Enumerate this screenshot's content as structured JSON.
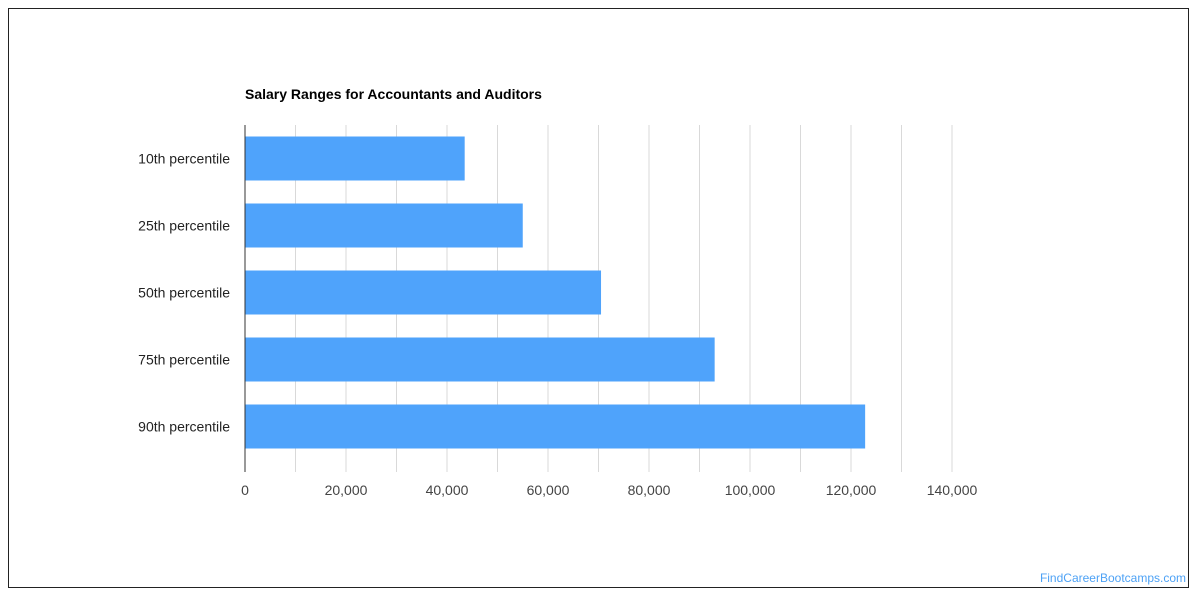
{
  "chart_data": {
    "type": "bar",
    "orientation": "horizontal",
    "title": "Salary Ranges for Accountants and Auditors",
    "xlabel": "",
    "ylabel": "",
    "categories": [
      "10th percentile",
      "25th percentile",
      "50th percentile",
      "75th percentile",
      "90th percentile"
    ],
    "values": [
      43500,
      55000,
      70500,
      93000,
      122800
    ],
    "xlim": [
      0,
      140000
    ],
    "ticks": [
      0,
      20000,
      40000,
      60000,
      80000,
      100000,
      120000,
      140000
    ],
    "tick_labels": [
      "0",
      "20,000",
      "40,000",
      "60,000",
      "80,000",
      "100,000",
      "120,000",
      "140,000"
    ],
    "grid": true,
    "legend": "none",
    "bar_color": "#4fa3fb"
  },
  "footer": {
    "watermark": "FindCareerBootcamps.com"
  },
  "colors": {
    "gridline": "#d9d9d9",
    "axis": "#333333",
    "watermark": "#4ea2f5"
  }
}
